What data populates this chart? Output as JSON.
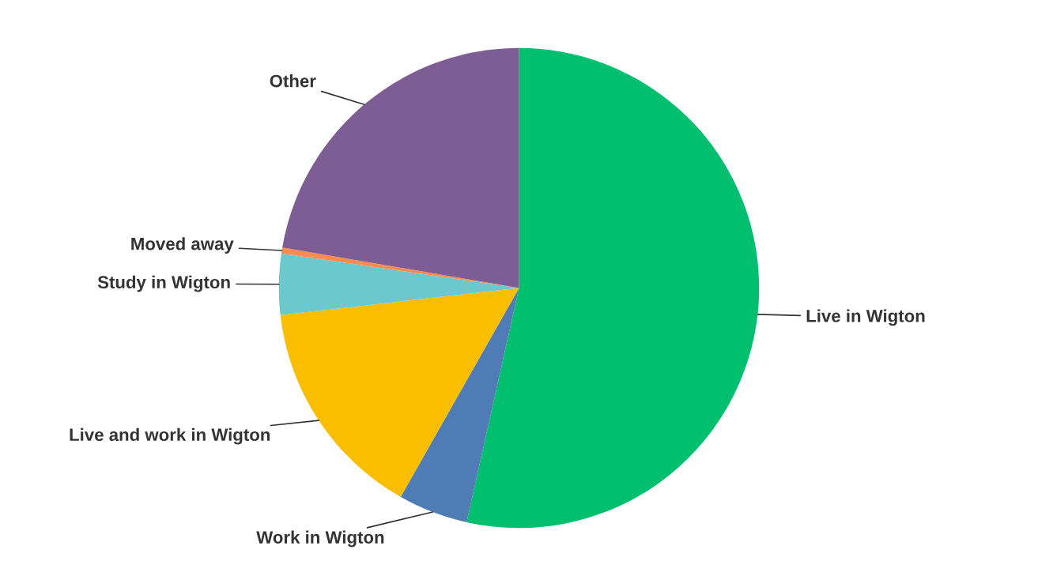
{
  "chart_data": {
    "type": "pie",
    "categories": [
      "Live in Wigton",
      "Work in Wigton",
      "Live and work in Wigton",
      "Study in Wigton",
      "Moved away",
      "Other"
    ],
    "values": [
      53.5,
      4.7,
      15.0,
      4.1,
      0.4,
      22.3
    ],
    "colors": [
      "#00bf6f",
      "#507cb6",
      "#f9be00",
      "#6bc8cd",
      "#ff8b4f",
      "#7d5d93"
    ],
    "legend": false
  }
}
